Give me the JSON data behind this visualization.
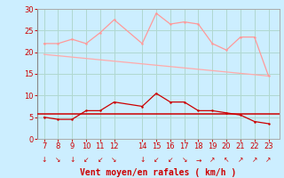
{
  "xlabel": "Vent moyen/en rafales ( km/h )",
  "hours": [
    7,
    8,
    9,
    10,
    11,
    12,
    14,
    15,
    16,
    17,
    18,
    19,
    20,
    21,
    22,
    23
  ],
  "rafales": [
    22,
    22,
    23,
    22,
    24.5,
    27.5,
    22,
    29,
    26.5,
    27,
    26.5,
    22,
    20.5,
    23.5,
    23.5,
    14.5
  ],
  "moyen": [
    5,
    4.5,
    4.5,
    6.5,
    6.5,
    8.5,
    7.5,
    10.5,
    8.5,
    8.5,
    6.5,
    6.5,
    6,
    5.5,
    4,
    3.5
  ],
  "tendency_start": 19.5,
  "tendency_end": 14.5,
  "tendency_hours": [
    7,
    23
  ],
  "hline_y": 5.8,
  "bg_color": "#cceeff",
  "grid_color": "#b0d8d0",
  "line_rafales_color": "#ff9999",
  "line_moyen_color": "#cc0000",
  "line_tendency_color": "#ffaaaa",
  "hline_color": "#cc0000",
  "text_color": "#cc0000",
  "ylim": [
    0,
    30
  ],
  "yticks": [
    0,
    5,
    10,
    15,
    20,
    25,
    30
  ],
  "xlim": [
    6.5,
    23.8
  ],
  "wind_symbols": [
    "↓",
    "↘",
    "↓",
    "↙",
    "↙",
    "↘",
    "↓",
    "↙",
    "↙",
    "↘",
    "→",
    "↗",
    "↖",
    "↗",
    "↗",
    "↗"
  ]
}
